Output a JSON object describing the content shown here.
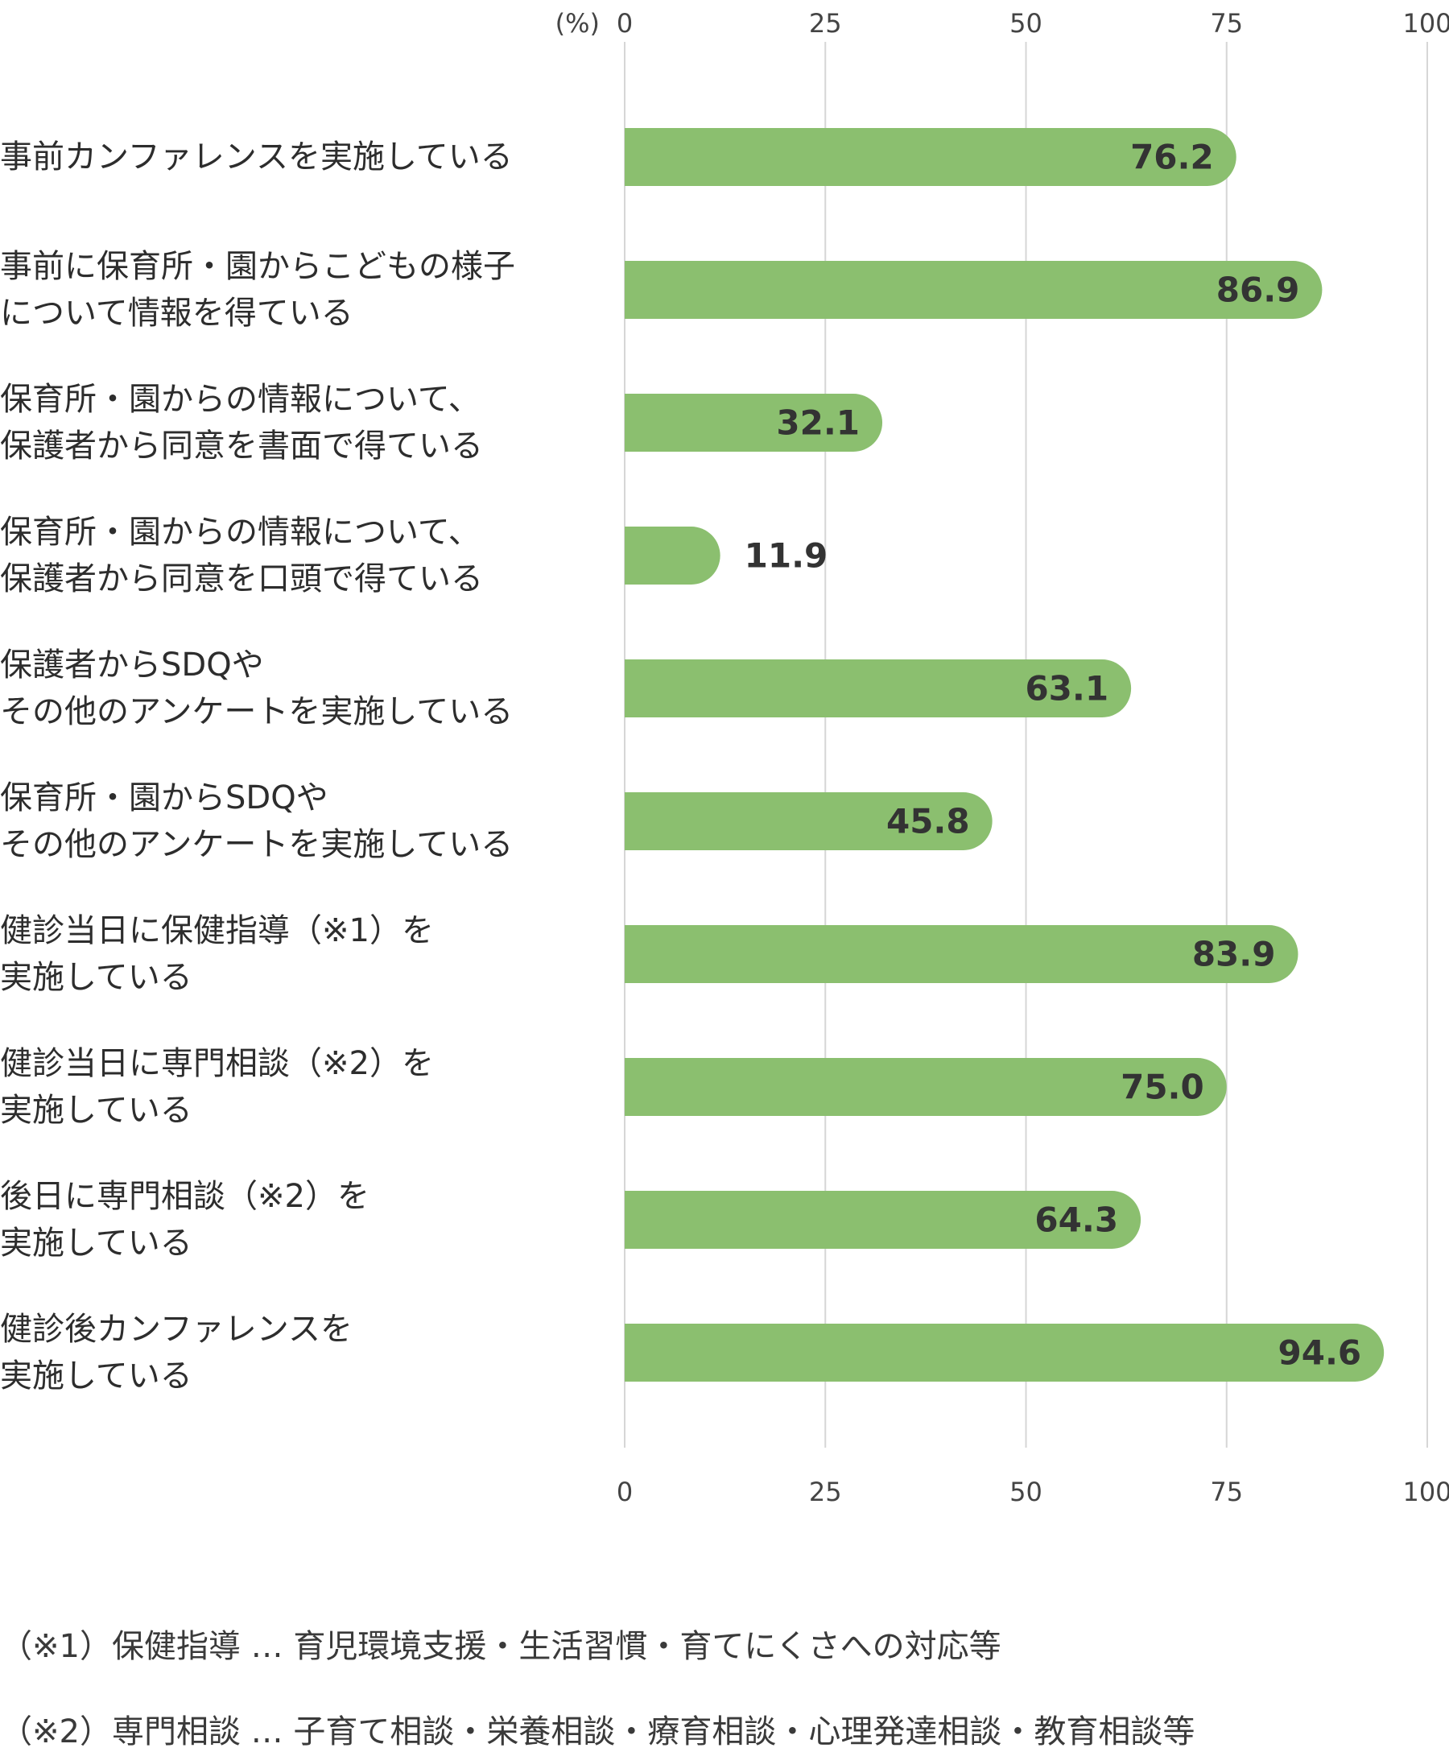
{
  "chart_data": {
    "type": "bar",
    "orientation": "horizontal",
    "unit_label": "(%)",
    "xlim": [
      0,
      100
    ],
    "ticks": [
      "0",
      "25",
      "50",
      "75",
      "100"
    ],
    "grid": true,
    "bar_color": "#8bbf6f",
    "categories": [
      [
        "事前カンファレンスを実施している"
      ],
      [
        "事前に保育所・園からこどもの様子",
        "について情報を得ている"
      ],
      [
        "保育所・園からの情報について、",
        "保護者から同意を書面で得ている"
      ],
      [
        "保育所・園からの情報について、",
        "保護者から同意を口頭で得ている"
      ],
      [
        "保護者からSDQや",
        "その他のアンケートを実施している"
      ],
      [
        "保育所・園からSDQや",
        "その他のアンケートを実施している"
      ],
      [
        "健診当日に保健指導（※1）を",
        "実施している"
      ],
      [
        "健診当日に専門相談（※2）を",
        "実施している"
      ],
      [
        "後日に専門相談（※2）を",
        "実施している"
      ],
      [
        "健診後カンファレンスを",
        "実施している"
      ]
    ],
    "values": [
      76.2,
      86.9,
      32.1,
      11.9,
      63.1,
      45.8,
      83.9,
      75.0,
      64.3,
      94.6
    ],
    "value_labels": [
      "76.2",
      "86.9",
      "32.1",
      "11.9",
      "63.1",
      "45.8",
      "83.9",
      "75.0",
      "64.3",
      "94.6"
    ]
  },
  "footnotes": [
    "（※1）保健指導 … 育児環境支援・生活習慣・育てにくさへの対応等",
    "（※2）専門相談 … 子育て相談・栄養相談・療育相談・心理発達相談・教育相談等"
  ]
}
